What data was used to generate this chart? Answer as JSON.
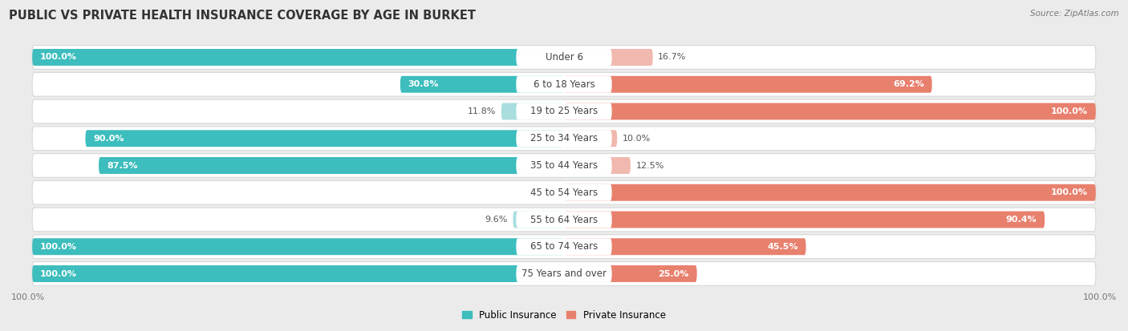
{
  "title": "PUBLIC VS PRIVATE HEALTH INSURANCE COVERAGE BY AGE IN BURKET",
  "source": "Source: ZipAtlas.com",
  "categories": [
    "Under 6",
    "6 to 18 Years",
    "19 to 25 Years",
    "25 to 34 Years",
    "35 to 44 Years",
    "45 to 54 Years",
    "55 to 64 Years",
    "65 to 74 Years",
    "75 Years and over"
  ],
  "public_values": [
    100.0,
    30.8,
    11.8,
    90.0,
    87.5,
    0.0,
    9.6,
    100.0,
    100.0
  ],
  "private_values": [
    16.7,
    69.2,
    100.0,
    10.0,
    12.5,
    100.0,
    90.4,
    45.5,
    25.0
  ],
  "public_color": "#3dbdbd",
  "private_color": "#e8806e",
  "public_color_light": "#aadede",
  "private_color_light": "#f0b8ae",
  "background_color": "#ebebeb",
  "row_bg_color": "#ffffff",
  "row_border_color": "#d8d8d8",
  "figsize": [
    14.06,
    4.13
  ],
  "dpi": 100,
  "x_max": 100.0,
  "axis_label_left": "100.0%",
  "axis_label_right": "100.0%",
  "legend_entries": [
    "Public Insurance",
    "Private Insurance"
  ],
  "title_fontsize": 10.5,
  "label_fontsize": 8,
  "category_fontsize": 8.5,
  "source_fontsize": 7.5,
  "legend_fontsize": 8.5,
  "value_label_white_threshold": 20
}
